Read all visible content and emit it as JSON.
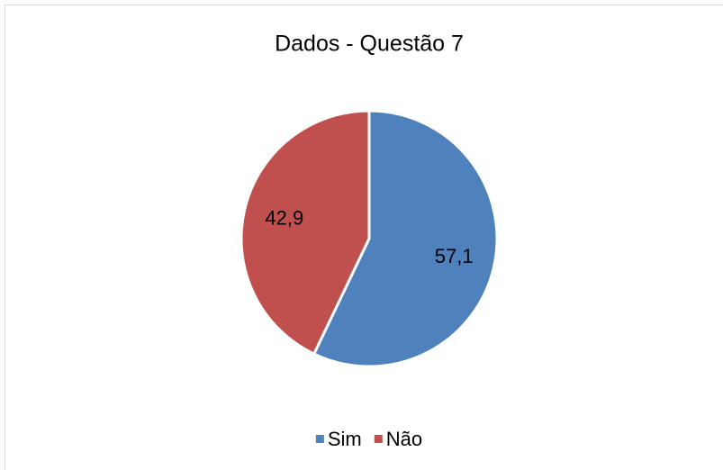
{
  "chart_data": {
    "type": "pie",
    "title": "Dados - Questão 7",
    "categories": [
      "Sim",
      "Não"
    ],
    "values": [
      57.1,
      42.9
    ],
    "value_labels": [
      "57,1",
      "42,9"
    ],
    "colors": [
      "#4f81bd",
      "#c0504d"
    ],
    "legend": "bottom"
  }
}
